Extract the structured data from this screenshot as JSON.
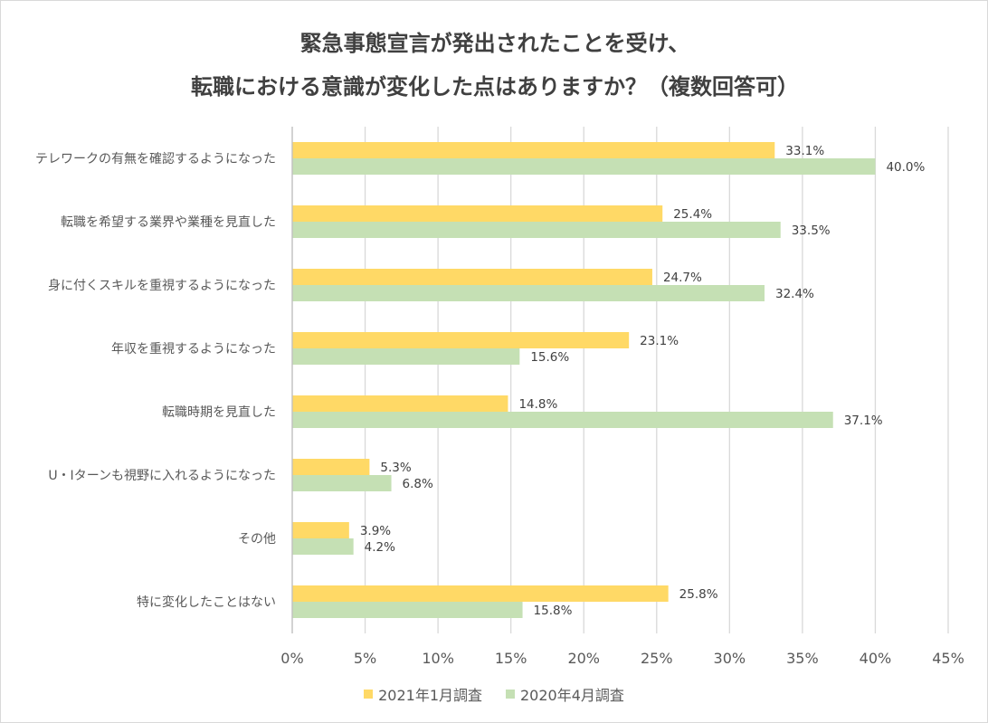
{
  "chart_data": {
    "type": "bar",
    "orientation": "horizontal",
    "title": [
      "緊急事態宣言が発出されたことを受け、",
      "転職における意識が変化した点はありますか？（複数回答可）"
    ],
    "categories": [
      "テレワークの有無を確認するようになった",
      "転職を希望する業界や業種を見直した",
      "身に付くスキルを重視するようになった",
      "年収を重視するようになった",
      "転職時期を見直した",
      "U・Iターンも視野に入れるようになった",
      "その他",
      "特に変化したことはない"
    ],
    "series": [
      {
        "name": "2021年1月調査",
        "color": "#ffd966",
        "values": [
          33.1,
          25.4,
          24.7,
          23.1,
          14.8,
          5.3,
          3.9,
          25.8
        ],
        "labels": [
          "33.1%",
          "25.4%",
          "24.7%",
          "23.1%",
          "14.8%",
          "5.3%",
          "3.9%",
          "25.8%"
        ]
      },
      {
        "name": "2020年4月調査",
        "color": "#c5e0b4",
        "values": [
          40.0,
          33.5,
          32.4,
          15.6,
          37.1,
          6.8,
          4.2,
          15.8
        ],
        "labels": [
          "40.0%",
          "33.5%",
          "32.4%",
          "15.6%",
          "37.1%",
          "6.8%",
          "4.2%",
          "15.8%"
        ]
      }
    ],
    "xlim": [
      0,
      45
    ],
    "xticks": [
      0,
      5,
      10,
      15,
      20,
      25,
      30,
      35,
      40,
      45
    ],
    "xtick_labels": [
      "0%",
      "5%",
      "10%",
      "15%",
      "20%",
      "25%",
      "30%",
      "35%",
      "40%",
      "45%"
    ],
    "grid": true,
    "legend_position": "bottom"
  }
}
